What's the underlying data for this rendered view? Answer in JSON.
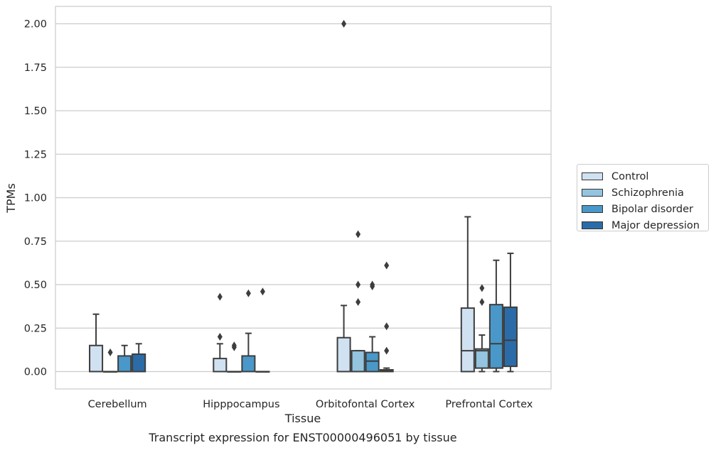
{
  "chart_data": {
    "type": "boxplot",
    "title": "",
    "caption": "Transcript expression for ENST00000496051 by tissue",
    "xlabel": "Tissue",
    "ylabel": "TPMs",
    "ylim": [
      -0.1,
      2.1
    ],
    "yticks": [
      "0.00",
      "0.25",
      "0.50",
      "0.75",
      "1.00",
      "1.25",
      "1.50",
      "1.75",
      "2.00"
    ],
    "ytick_values": [
      0,
      0.25,
      0.5,
      0.75,
      1.0,
      1.25,
      1.5,
      1.75,
      2.0
    ],
    "grid": "horizontal",
    "legend_placement": "right",
    "categories": [
      "Cerebellum",
      "Hipppocampus",
      "Orbitofontal Cortex",
      "Prefrontal Cortex"
    ],
    "series": [
      {
        "name": "Control",
        "color": "#d0e1f2",
        "boxes": [
          {
            "q1": 0,
            "median": 0,
            "q3": 0.15,
            "whislo": 0,
            "whishi": 0.33,
            "fliers": []
          },
          {
            "q1": 0,
            "median": 0,
            "q3": 0.075,
            "whislo": 0,
            "whishi": 0.16,
            "fliers": [
              0.2,
              0.43
            ]
          },
          {
            "q1": 0,
            "median": 0,
            "q3": 0.195,
            "whislo": 0,
            "whishi": 0.38,
            "fliers": [
              2.0
            ]
          },
          {
            "q1": 0,
            "median": 0.12,
            "q3": 0.365,
            "whislo": 0,
            "whishi": 0.89,
            "fliers": []
          }
        ]
      },
      {
        "name": "Schizophrenia",
        "color": "#94c4df",
        "boxes": [
          {
            "q1": 0,
            "median": 0,
            "q3": 0,
            "whislo": 0,
            "whishi": 0,
            "fliers": [
              0.11
            ]
          },
          {
            "q1": 0,
            "median": 0,
            "q3": 0,
            "whislo": 0,
            "whishi": 0,
            "fliers": [
              0.14,
              0.15
            ]
          },
          {
            "q1": 0,
            "median": 0,
            "q3": 0.12,
            "whislo": 0,
            "whishi": 0.12,
            "fliers": [
              0.4,
              0.5,
              0.79
            ]
          },
          {
            "q1": 0.02,
            "median": 0.12,
            "q3": 0.13,
            "whislo": 0,
            "whishi": 0.21,
            "fliers": [
              0.4,
              0.48
            ]
          }
        ]
      },
      {
        "name": "Bipolar disorder",
        "color": "#4a98c9",
        "boxes": [
          {
            "q1": 0,
            "median": 0,
            "q3": 0.09,
            "whislo": 0,
            "whishi": 0.15,
            "fliers": []
          },
          {
            "q1": 0,
            "median": 0,
            "q3": 0.09,
            "whislo": 0,
            "whishi": 0.22,
            "fliers": [
              0.45
            ]
          },
          {
            "q1": 0,
            "median": 0.06,
            "q3": 0.11,
            "whislo": 0,
            "whishi": 0.2,
            "fliers": [
              0.49,
              0.5
            ]
          },
          {
            "q1": 0.02,
            "median": 0.16,
            "q3": 0.385,
            "whislo": 0,
            "whishi": 0.64,
            "fliers": []
          }
        ]
      },
      {
        "name": "Major depression",
        "color": "#2b6ca8",
        "boxes": [
          {
            "q1": 0,
            "median": 0,
            "q3": 0.1,
            "whislo": 0,
            "whishi": 0.16,
            "fliers": []
          },
          {
            "q1": 0,
            "median": 0,
            "q3": 0,
            "whislo": 0,
            "whishi": 0,
            "fliers": [
              0.46
            ]
          },
          {
            "q1": 0,
            "median": 0.005,
            "q3": 0.01,
            "whislo": 0,
            "whishi": 0.02,
            "fliers": [
              0.12,
              0.26,
              0.61
            ]
          },
          {
            "q1": 0.03,
            "median": 0.18,
            "q3": 0.37,
            "whislo": 0,
            "whishi": 0.68,
            "fliers": []
          }
        ]
      }
    ]
  }
}
